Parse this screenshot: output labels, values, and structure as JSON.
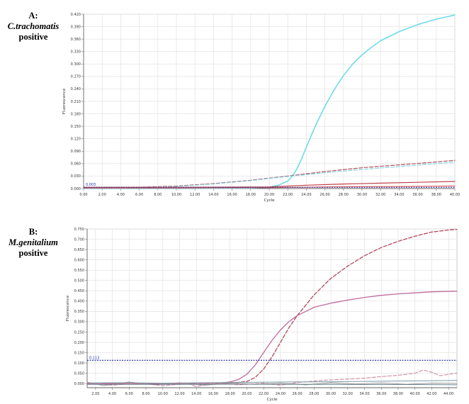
{
  "panels": [
    {
      "label_letter": "A:",
      "label_organism": "C.trachomatis",
      "label_status": "positive"
    },
    {
      "label_letter": "B:",
      "label_organism": "M.genitalium",
      "label_status": "positive"
    }
  ],
  "chart_data": [
    {
      "type": "line",
      "title": "",
      "xlabel": "Cycle",
      "ylabel": "Fluorescence",
      "xlim": [
        0,
        40
      ],
      "ylim": [
        0,
        0.42
      ],
      "x_ticks": [
        "0.00",
        "2.00",
        "4.00",
        "6.00",
        "8.00",
        "10.00",
        "12.00",
        "14.00",
        "16.00",
        "18.00",
        "20.00",
        "22.00",
        "24.00",
        "26.00",
        "28.00",
        "30.00",
        "32.00",
        "34.00",
        "36.00",
        "38.00",
        "40.00"
      ],
      "x_tick_values": [
        0,
        2,
        4,
        6,
        8,
        10,
        12,
        14,
        16,
        18,
        20,
        22,
        24,
        26,
        28,
        30,
        32,
        34,
        36,
        38,
        40
      ],
      "y_ticks": [
        "0.000",
        "0.030",
        "0.060",
        "0.090",
        "0.120",
        "0.150",
        "0.180",
        "0.210",
        "0.240",
        "0.270",
        "0.300",
        "0.330",
        "0.360",
        "0.390",
        "0.420"
      ],
      "y_tick_values": [
        0,
        0.03,
        0.06,
        0.09,
        0.12,
        0.15,
        0.18,
        0.21,
        0.24,
        0.27,
        0.3,
        0.33,
        0.36,
        0.39,
        0.42
      ],
      "grid": true,
      "threshold": {
        "value": 0.003,
        "label": "0.003",
        "color": "#1a2a9a"
      },
      "series": [
        {
          "color": "#6fdcea",
          "dash": false,
          "width": 1.6,
          "x": [
            0,
            10,
            18,
            20,
            21,
            22,
            22.5,
            23,
            23.5,
            24,
            25,
            26,
            27,
            28,
            29,
            30,
            31,
            32,
            34,
            36,
            38,
            40
          ],
          "y": [
            0,
            0,
            0.001,
            0.003,
            0.008,
            0.018,
            0.03,
            0.048,
            0.072,
            0.1,
            0.152,
            0.198,
            0.238,
            0.272,
            0.3,
            0.322,
            0.34,
            0.356,
            0.378,
            0.395,
            0.408,
            0.418
          ]
        },
        {
          "color": "#b05560",
          "dash": true,
          "width": 1.2,
          "x": [
            0,
            6,
            10,
            14,
            18,
            22,
            26,
            30,
            34,
            38,
            40
          ],
          "y": [
            0.002,
            0.003,
            0.006,
            0.012,
            0.02,
            0.03,
            0.041,
            0.05,
            0.057,
            0.064,
            0.068
          ]
        },
        {
          "color": "#8fd6e4",
          "dash": true,
          "width": 1.2,
          "x": [
            0,
            6,
            10,
            14,
            18,
            22,
            26,
            30,
            34,
            38,
            40
          ],
          "y": [
            0.001,
            0.002,
            0.005,
            0.011,
            0.019,
            0.029,
            0.038,
            0.046,
            0.053,
            0.06,
            0.064
          ]
        },
        {
          "color": "#c0404c",
          "dash": false,
          "width": 1.2,
          "x": [
            0,
            10,
            20,
            24,
            28,
            32,
            36,
            40
          ],
          "y": [
            0.003,
            0.003,
            0.004,
            0.008,
            0.011,
            0.013,
            0.015,
            0.017
          ]
        },
        {
          "color": "#e04850",
          "dash": false,
          "width": 1.0,
          "x": [
            0,
            10,
            20,
            26,
            34,
            40
          ],
          "y": [
            0.001,
            0.001,
            0.002,
            0.004,
            0.005,
            0.006
          ]
        }
      ]
    },
    {
      "type": "line",
      "title": "",
      "xlabel": "Cycle",
      "ylabel": "Fluorescence",
      "xlim": [
        1,
        45
      ],
      "ylim": [
        -0.02,
        0.75
      ],
      "x_ticks": [
        "2.00",
        "4.00",
        "6.00",
        "8.00",
        "10.00",
        "12.00",
        "14.00",
        "16.00",
        "18.00",
        "20.00",
        "22.00",
        "24.00",
        "26.00",
        "28.00",
        "30.00",
        "32.00",
        "34.00",
        "36.00",
        "38.00",
        "40.00",
        "42.00",
        "44.00"
      ],
      "x_tick_values": [
        2,
        4,
        6,
        8,
        10,
        12,
        14,
        16,
        18,
        20,
        22,
        24,
        26,
        28,
        30,
        32,
        34,
        36,
        38,
        40,
        42,
        44
      ],
      "y_ticks": [
        "0.000",
        "0.050",
        "0.100",
        "0.150",
        "0.200",
        "0.250",
        "0.300",
        "0.350",
        "0.400",
        "0.450",
        "0.500",
        "0.550",
        "0.600",
        "0.650",
        "0.700",
        "0.750"
      ],
      "y_tick_values": [
        0,
        0.05,
        0.1,
        0.15,
        0.2,
        0.25,
        0.3,
        0.35,
        0.4,
        0.45,
        0.5,
        0.55,
        0.6,
        0.65,
        0.7,
        0.75
      ],
      "grid": true,
      "threshold": {
        "value": 0.113,
        "label": "0.113",
        "color": "#1a2a9a"
      },
      "series": [
        {
          "color": "#b04a5e",
          "dash": true,
          "width": 1.3,
          "x": [
            1,
            10,
            18,
            20,
            21,
            22,
            23,
            24,
            25,
            26,
            28,
            30,
            32,
            34,
            36,
            38,
            40,
            42,
            44,
            45
          ],
          "y": [
            0,
            0,
            0.002,
            0.01,
            0.03,
            0.07,
            0.13,
            0.2,
            0.27,
            0.33,
            0.43,
            0.51,
            0.57,
            0.62,
            0.66,
            0.69,
            0.715,
            0.735,
            0.745,
            0.748
          ]
        },
        {
          "color": "#c06a9a",
          "dash": false,
          "width": 1.3,
          "x": [
            1,
            10,
            17,
            18,
            19,
            20,
            21,
            22,
            23,
            24,
            25,
            26,
            27,
            28,
            30,
            32,
            34,
            36,
            38,
            40,
            42,
            44,
            45
          ],
          "y": [
            0,
            0,
            0.003,
            0.008,
            0.02,
            0.045,
            0.09,
            0.15,
            0.21,
            0.26,
            0.3,
            0.33,
            0.35,
            0.37,
            0.39,
            0.405,
            0.418,
            0.428,
            0.435,
            0.44,
            0.445,
            0.447,
            0.448
          ]
        },
        {
          "color": "#d08aa6",
          "dash": true,
          "width": 1.1,
          "x": [
            1,
            4,
            7,
            10,
            13,
            14,
            16,
            19,
            22,
            24,
            26,
            28,
            30,
            32,
            34,
            36,
            38,
            40,
            41,
            42,
            43,
            44,
            45
          ],
          "y": [
            0.005,
            -0.008,
            0.003,
            -0.01,
            0.0,
            -0.015,
            0.004,
            -0.006,
            0.002,
            -0.008,
            0.005,
            0.012,
            0.018,
            0.022,
            0.026,
            0.034,
            0.04,
            0.05,
            0.066,
            0.055,
            0.038,
            0.045,
            0.05
          ]
        },
        {
          "color": "#7a9aa4",
          "dash": false,
          "width": 1.0,
          "x": [
            1,
            5,
            10,
            15,
            20,
            25,
            30,
            35,
            40,
            45
          ],
          "y": [
            0.003,
            0.004,
            0.002,
            0.004,
            0.006,
            0.008,
            0.009,
            0.011,
            0.013,
            0.015
          ]
        },
        {
          "color": "#909090",
          "dash": false,
          "width": 0.9,
          "x": [
            1,
            3,
            6,
            9,
            12,
            15,
            18,
            21,
            24,
            27,
            30,
            33,
            36,
            39,
            42,
            45
          ],
          "y": [
            0.006,
            -0.01,
            0.008,
            -0.006,
            0.004,
            -0.008,
            0.003,
            -0.004,
            0.002,
            -0.006,
            0.004,
            -0.002,
            0.003,
            -0.004,
            0.002,
            0.001
          ]
        },
        {
          "color": "#5f7a88",
          "dash": false,
          "width": 0.9,
          "x": [
            1,
            10,
            20,
            30,
            40,
            45
          ],
          "y": [
            -0.004,
            -0.004,
            -0.003,
            -0.004,
            -0.005,
            -0.006
          ]
        }
      ]
    }
  ]
}
